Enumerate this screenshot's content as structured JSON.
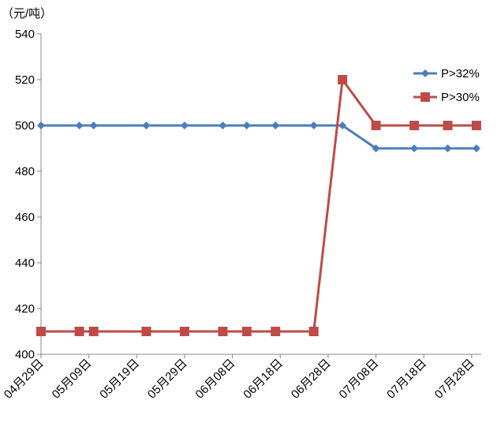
{
  "chart_data": {
    "type": "line",
    "unit_label": "（元/吨）",
    "ylim": [
      400,
      540
    ],
    "yticks": [
      400,
      420,
      440,
      460,
      480,
      500,
      520,
      540
    ],
    "xlim": [
      "04-29",
      "07-30"
    ],
    "xticks": [
      "04月29日",
      "05月09日",
      "05月19日",
      "05月29日",
      "06月08日",
      "06月18日",
      "06月28日",
      "07月08日",
      "07月18日",
      "07月28日"
    ],
    "xtick_dates": [
      "04-29",
      "05-09",
      "05-19",
      "05-29",
      "06-08",
      "06-18",
      "06-28",
      "07-08",
      "07-18",
      "07-28"
    ],
    "grid": false,
    "legend_placement": "top-right",
    "x": [
      "04-29",
      "05-07",
      "05-10",
      "05-21",
      "05-29",
      "06-06",
      "06-11",
      "06-17",
      "06-25",
      "07-01",
      "07-08",
      "07-16",
      "07-23",
      "07-29"
    ],
    "series": [
      {
        "name": "P>32%",
        "color": "#4a7ebb",
        "marker": "diamond",
        "values": [
          500,
          500,
          500,
          500,
          500,
          500,
          500,
          500,
          500,
          500,
          490,
          490,
          490,
          490
        ]
      },
      {
        "name": "P>30%",
        "color": "#be4b48",
        "marker": "square",
        "values": [
          410,
          410,
          410,
          410,
          410,
          410,
          410,
          410,
          410,
          520,
          500,
          500,
          500,
          500
        ]
      }
    ]
  }
}
